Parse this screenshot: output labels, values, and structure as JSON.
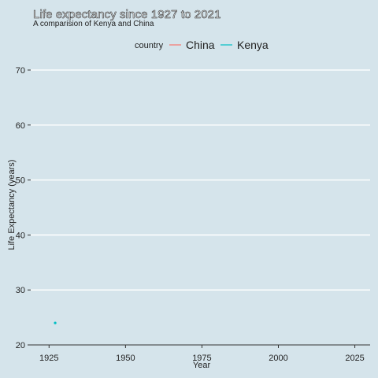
{
  "header": {
    "title": "Life expectancy since 1927 to 2021",
    "subtitle": "A comparision of Kenya and China"
  },
  "chart_data": {
    "type": "line",
    "title": "Life expectancy since 1927 to 2021",
    "subtitle": "A comparision of Kenya and China",
    "xlabel": "Year",
    "ylabel": "Life Expectancy (years)",
    "xlim": [
      1919,
      2030
    ],
    "ylim": [
      20,
      72
    ],
    "x_ticks": [
      1925,
      1950,
      1975,
      2000,
      2025
    ],
    "y_ticks": [
      20,
      30,
      40,
      50,
      60,
      70
    ],
    "grid": true,
    "legend": {
      "position": "top",
      "title": "country",
      "entries": [
        "China",
        "Kenya"
      ]
    },
    "series": [
      {
        "name": "China",
        "color": "#f8766d",
        "points": []
      },
      {
        "name": "Kenya",
        "color": "#00bfc4",
        "points": [
          {
            "x": 1927,
            "y": 24
          }
        ]
      }
    ]
  }
}
